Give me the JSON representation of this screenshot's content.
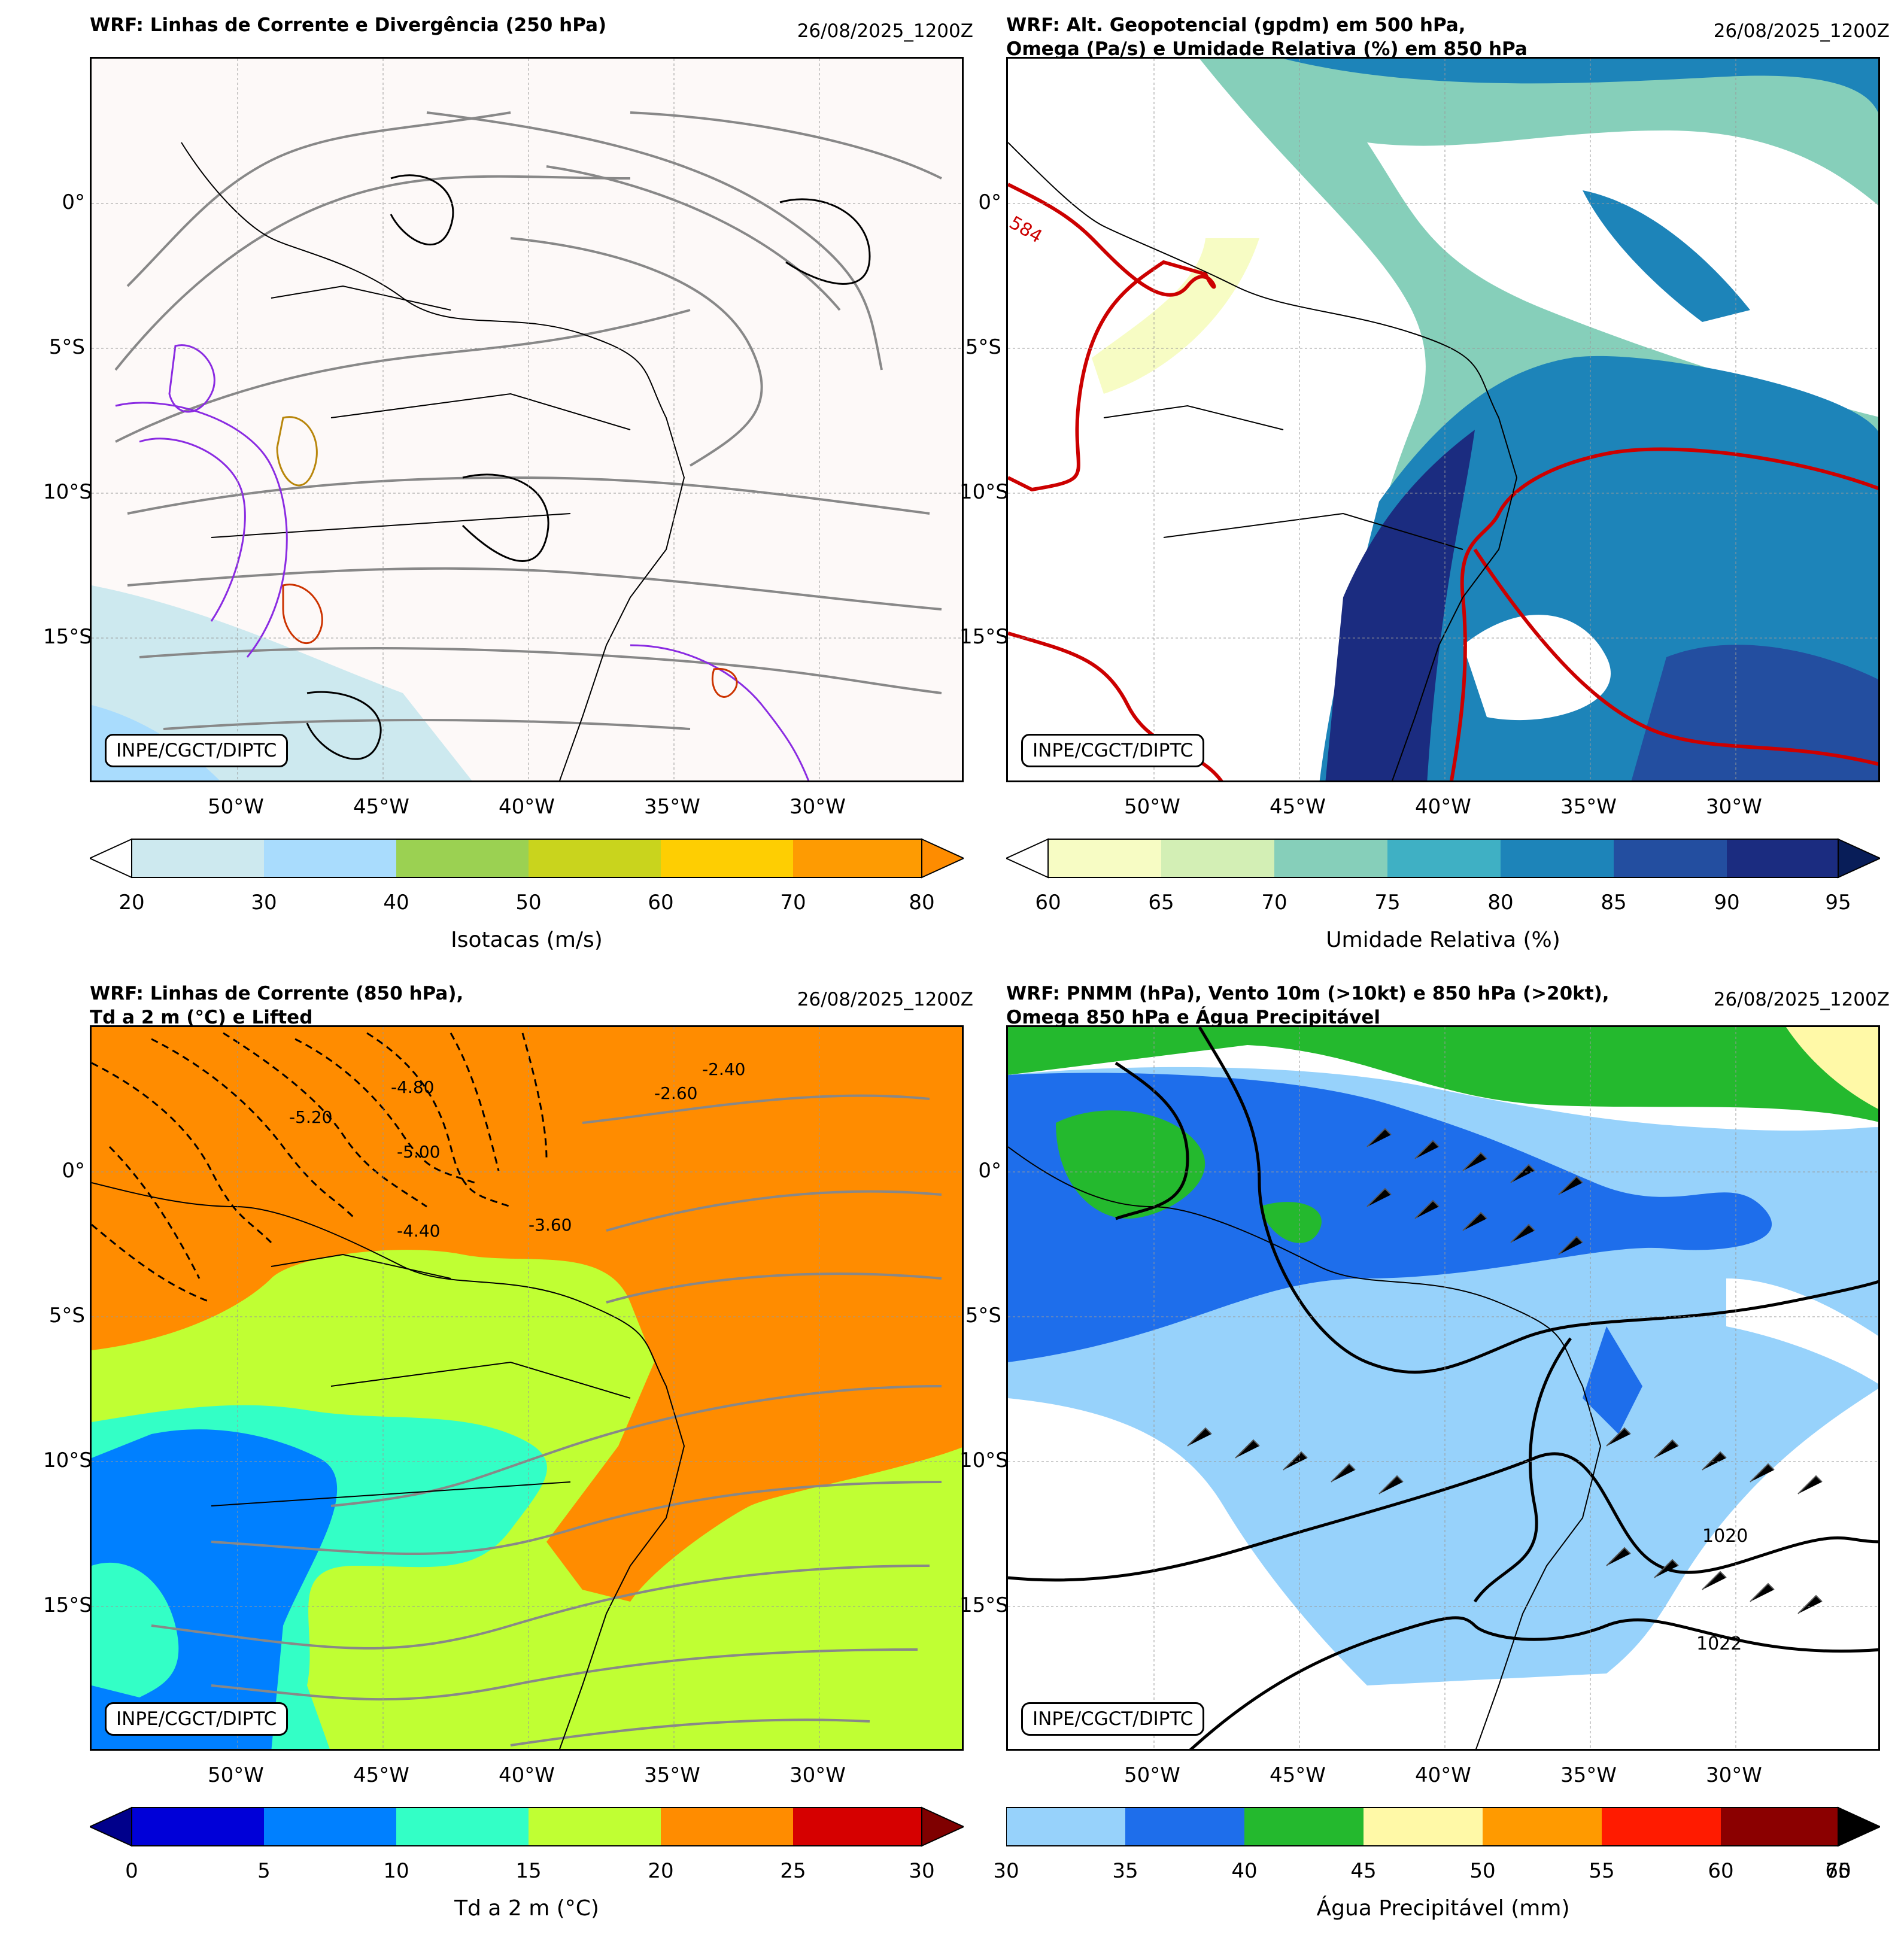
{
  "credit": "INPE/CGCT/DIPTC",
  "lat_labels": [
    "0°",
    "5°S",
    "10°S",
    "15°S"
  ],
  "lon_labels": [
    "50°W",
    "45°W",
    "40°W",
    "35°W",
    "30°W"
  ],
  "panels": [
    {
      "title": "WRF: Linhas de Corrente e Divergência (250 hPa)",
      "date": "26/08/2025_1200Z",
      "colorbar": {
        "label": "Isotacas (m/s)",
        "ticks": [
          "20",
          "30",
          "40",
          "50",
          "60",
          "70",
          "80"
        ],
        "colors": [
          "#cde9ef",
          "#a9dcfd",
          "#9bd152",
          "#c9d41d",
          "#fece02",
          "#fe9b02"
        ],
        "under": "#ffffff",
        "over": "#fe8c00"
      },
      "map_fills": [
        "#fdf9f8",
        "#cde9ef",
        "#a9dcfd"
      ]
    },
    {
      "title": "WRF: Alt. Geopotencial (gpdm) em 500 hPa,\nOmega (Pa/s) e Umidade Relativa (%) em 850 hPa",
      "date": "26/08/2025_1200Z",
      "contour_labels": [
        "584"
      ],
      "colorbar": {
        "label": "Umidade Relativa (%)",
        "ticks": [
          "60",
          "65",
          "70",
          "75",
          "80",
          "85",
          "90",
          "95"
        ],
        "colors": [
          "#f7fcc4",
          "#d3efb5",
          "#86cfba",
          "#3fb0c4",
          "#1d84b9",
          "#234ea0",
          "#1b2c80"
        ],
        "under": "#ffffff",
        "over": "#081d58"
      },
      "map_fills": [
        "#ffffff",
        "#f7fcc4",
        "#86cfba",
        "#1d84b9",
        "#234ea0",
        "#1b2c80"
      ]
    },
    {
      "title": "WRF: Linhas de Corrente (850 hPa),\nTd a 2 m (°C) e Lifted",
      "date": "26/08/2025_1200Z",
      "contour_labels": [
        "-5.20",
        "-5.00",
        "-4.80",
        "-4.40",
        "-3.60",
        "-2.40",
        "-2.60"
      ],
      "colorbar": {
        "label": "Td a 2 m (°C)",
        "ticks": [
          "0",
          "5",
          "10",
          "15",
          "20",
          "25",
          "30"
        ],
        "colors": [
          "#0000d8",
          "#0080ff",
          "#33ffc6",
          "#c0ff33",
          "#ff8c00",
          "#d60000"
        ],
        "under": "#00008b",
        "over": "#7f0000"
      },
      "map_fills": [
        "#ff8c00",
        "#c0ff33",
        "#33ffc6",
        "#0080ff"
      ]
    },
    {
      "title": "WRF: PNMM (hPa), Vento 10m (>10kt) e 850 hPa (>20kt),\nOmega 850 hPa e Água Precipitável",
      "date": "26/08/2025_1200Z",
      "contour_labels": [
        "1020",
        "1022"
      ],
      "colorbar": {
        "label": "Água Precipitável (mm)",
        "ticks": [
          "30",
          "35",
          "40",
          "45",
          "50",
          "55",
          "60",
          "70"
        ],
        "extra_tick": "65",
        "colors": [
          "#97d2fb",
          "#1e6eeb",
          "#24b92e",
          "#fff9a7",
          "#ff9a00",
          "#ff1b00",
          "#8b0000"
        ],
        "under": "#ffffff",
        "over": "#000000"
      },
      "map_fills": [
        "#ffffff",
        "#97d2fb",
        "#1e6eeb",
        "#24b92e",
        "#fff9a7"
      ]
    }
  ]
}
